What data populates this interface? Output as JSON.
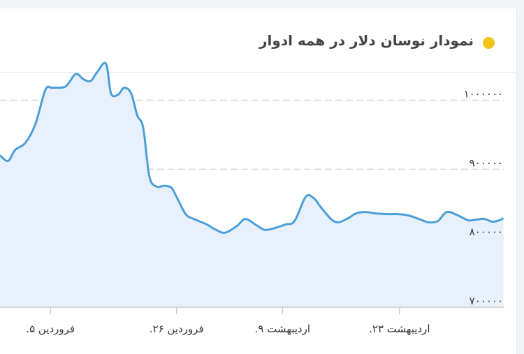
{
  "card": {
    "title": "نمودار نوسان دلار در همه ادوار",
    "accent_color": "#f0c419"
  },
  "chart_data": {
    "type": "area",
    "line_color": "#4a9fd8",
    "fill_color": "#e8f1fb",
    "grid": true,
    "ylim": [
      700000,
      1040000
    ],
    "y_ticks": [
      {
        "value": 700000,
        "label": "۷۰۰۰۰۰"
      },
      {
        "value": 800000,
        "label": "۸۰۰۰۰۰"
      },
      {
        "value": 900000,
        "label": "۹۰۰۰۰۰"
      },
      {
        "value": 1000000,
        "label": "۱۰۰۰۰۰۰"
      }
    ],
    "x_range": [
      0,
      50
    ],
    "x_ticks": [
      {
        "value": 5,
        "label": "فروردین ۵."
      },
      {
        "value": 17.5,
        "label": "فروردین ۲۶."
      },
      {
        "value": 28,
        "label": "اردیبهشت ۹."
      },
      {
        "value": 39.6,
        "label": "اردیبهشت ۲۳."
      }
    ],
    "series": [
      {
        "x": [
          0,
          0.8,
          1.5,
          2.5,
          3.5,
          4.5,
          5.2,
          6.5,
          7.5,
          8.3,
          9.0,
          9.6,
          10.5,
          11.0,
          11.7,
          12.3,
          13.0,
          13.6,
          14.2,
          14.8,
          15.5,
          16.3,
          17.0,
          17.5,
          18.4,
          19.2,
          20.5,
          21.3,
          22.3,
          23.5,
          24.3,
          25.3,
          26.3,
          27.5,
          28.3,
          29.2,
          30.3,
          31.1,
          31.8,
          32.8,
          33.5,
          34.4,
          35.3,
          36.2,
          37.2,
          38.4,
          39.4,
          40.5,
          41.5,
          42.5,
          43.4,
          44.3,
          45.4,
          46.4,
          47.2,
          48.0,
          48.8,
          49.5,
          49.9
        ],
        "y": [
          920000,
          912000,
          928000,
          938000,
          965000,
          1015000,
          1018000,
          1020000,
          1038000,
          1030000,
          1028000,
          1040000,
          1053000,
          1010000,
          1008000,
          1018000,
          1010000,
          978000,
          960000,
          890000,
          875000,
          876000,
          873000,
          860000,
          835000,
          828000,
          820000,
          813000,
          808000,
          818000,
          828000,
          820000,
          812000,
          816000,
          820000,
          825000,
          860000,
          858000,
          845000,
          828000,
          823000,
          828000,
          836000,
          838000,
          836000,
          835000,
          835000,
          833000,
          828000,
          823000,
          825000,
          838000,
          833000,
          826000,
          827000,
          828000,
          824000,
          826000,
          829000
        ]
      }
    ]
  }
}
